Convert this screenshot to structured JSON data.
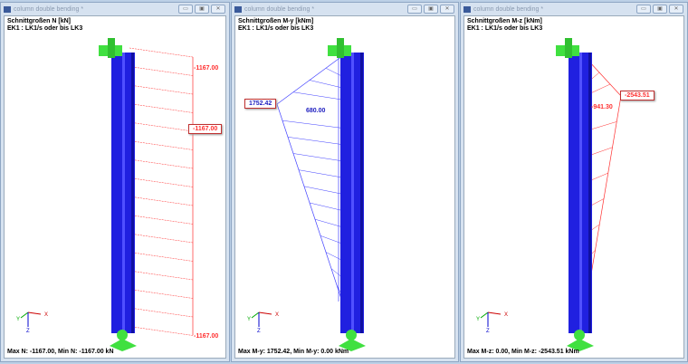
{
  "windows": [
    {
      "title": "column double bending *",
      "heading": "Schnittgroßen N [kN]",
      "subheading": "EK1 : LK1/s oder bis LK3",
      "footer": "Max N: -1167.00, Min N: -1167.00 kN",
      "labels": [
        "-1167.00",
        "-1167.00",
        "-1167.00"
      ],
      "diagram_color": "#ff3030"
    },
    {
      "title": "column double bending *",
      "heading": "Schnittgroßen M-y [kNm]",
      "subheading": "EK1 : LK1/s oder bis LK3",
      "footer": "Max M-y: 1752.42, Min M-y: 0.00 kNm",
      "labels": [
        "1752.42",
        "680.00"
      ],
      "diagram_color": "#4040ff"
    },
    {
      "title": "column double bending *",
      "heading": "Schnittgroßen M-z [kNm]",
      "subheading": "EK1 : LK1/s oder bis LK3",
      "footer": "Max M-z: 0.00, Min M-z: -2543.51 kNm",
      "labels": [
        "-2543.51",
        "-941.30"
      ],
      "diagram_color": "#ff3030"
    }
  ],
  "window_buttons": [
    "minimize-icon",
    "restore-icon",
    "close-icon"
  ],
  "axes": {
    "x": "X",
    "y": "Y",
    "z": "Z"
  },
  "colors": {
    "member": "#2020e0",
    "support": "#40e040"
  }
}
